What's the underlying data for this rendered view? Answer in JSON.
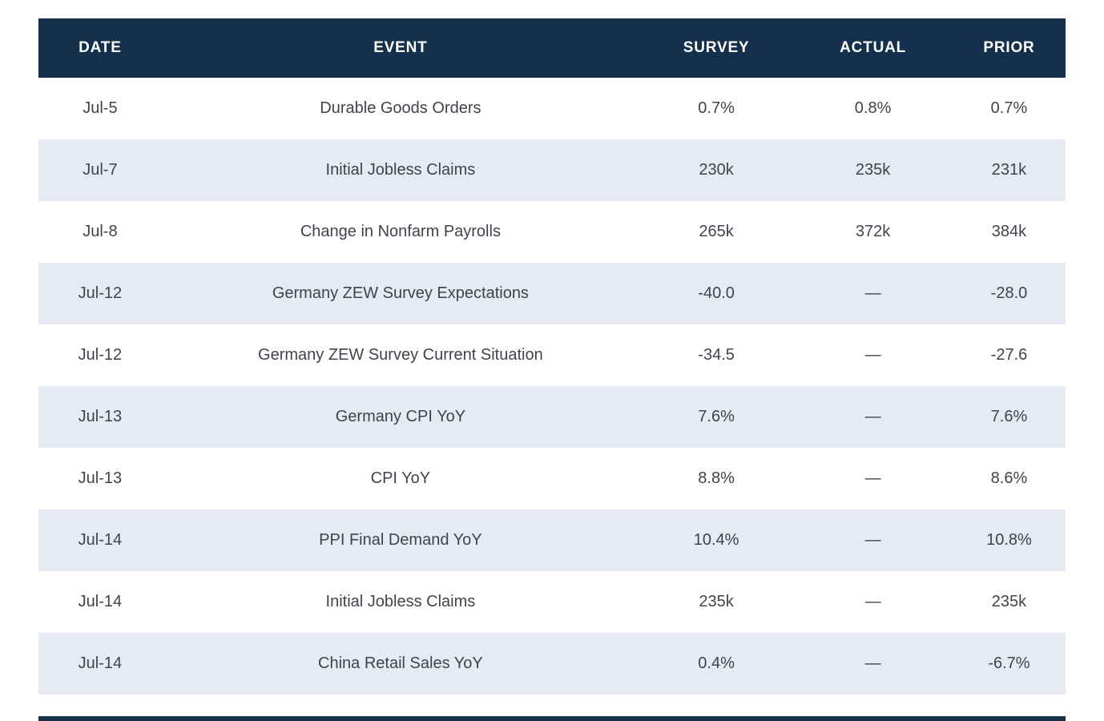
{
  "colors": {
    "header_bg": "#15304C",
    "header_text": "#FFFFFF",
    "row_alt_bg": "#E7E9F4",
    "row_bg": "#FFFFFF",
    "body_text": "#3F444C"
  },
  "chart_data": {
    "type": "table",
    "columns": [
      "DATE",
      "EVENT",
      "SURVEY",
      "ACTUAL",
      "PRIOR"
    ],
    "rows": [
      {
        "date": "Jul-5",
        "event": "Durable Goods Orders",
        "survey": "0.7%",
        "actual": "0.8%",
        "prior": "0.7%"
      },
      {
        "date": "Jul-7",
        "event": "Initial Jobless Claims",
        "survey": "230k",
        "actual": "235k",
        "prior": "231k"
      },
      {
        "date": "Jul-8",
        "event": "Change in Nonfarm Payrolls",
        "survey": "265k",
        "actual": "372k",
        "prior": "384k"
      },
      {
        "date": "Jul-12",
        "event": "Germany ZEW Survey Expectations",
        "survey": "-40.0",
        "actual": "—",
        "prior": "-28.0"
      },
      {
        "date": "Jul-12",
        "event": "Germany ZEW Survey Current Situation",
        "survey": "-34.5",
        "actual": "—",
        "prior": "-27.6"
      },
      {
        "date": "Jul-13",
        "event": "Germany CPI YoY",
        "survey": "7.6%",
        "actual": "—",
        "prior": "7.6%"
      },
      {
        "date": "Jul-13",
        "event": "CPI YoY",
        "survey": "8.8%",
        "actual": "—",
        "prior": "8.6%"
      },
      {
        "date": "Jul-14",
        "event": "PPI Final Demand YoY",
        "survey": "10.4%",
        "actual": "—",
        "prior": "10.8%"
      },
      {
        "date": "Jul-14",
        "event": "Initial Jobless Claims",
        "survey": "235k",
        "actual": "—",
        "prior": "235k"
      },
      {
        "date": "Jul-14",
        "event": "China Retail Sales YoY",
        "survey": "0.4%",
        "actual": "—",
        "prior": "-6.7%"
      }
    ]
  }
}
